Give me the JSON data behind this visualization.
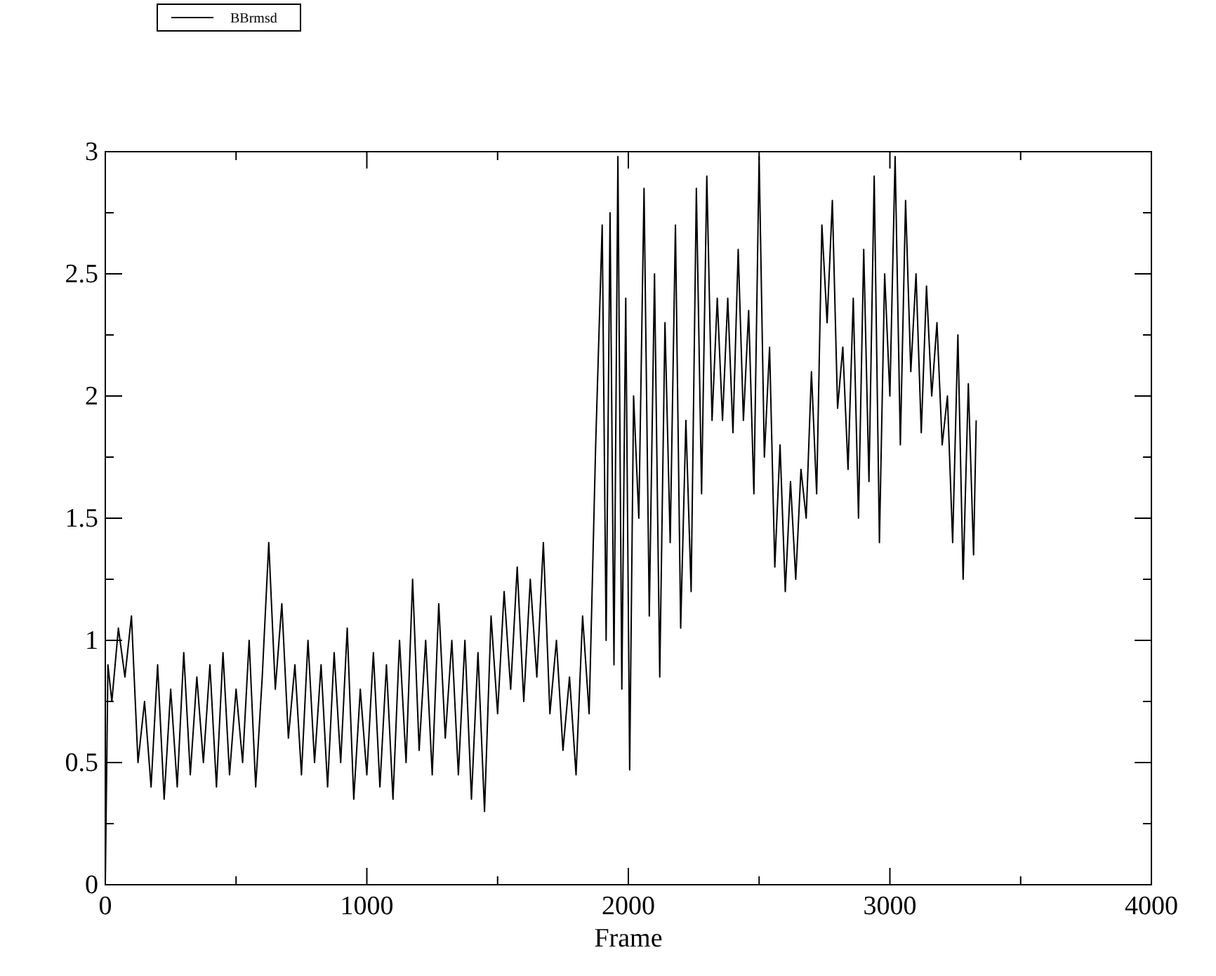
{
  "chart_data": {
    "type": "line",
    "xlabel": "Frame",
    "xlim": [
      0,
      4000
    ],
    "ylim": [
      0,
      3
    ],
    "xticks": [
      0,
      {
        "value": 500,
        "label": null
      },
      1000,
      {
        "value": 1500,
        "label": null
      },
      2000,
      {
        "value": 2500,
        "label": null
      },
      3000,
      {
        "value": 3500,
        "label": null
      },
      4000
    ],
    "yticks": [
      0,
      {
        "value": 0.25,
        "label": null
      },
      0.5,
      {
        "value": 0.75,
        "label": null
      },
      1,
      {
        "value": 1.25,
        "label": null
      },
      1.5,
      {
        "value": 1.75,
        "label": null
      },
      2,
      {
        "value": 2.25,
        "label": null
      },
      2.5,
      {
        "value": 2.75,
        "label": null
      },
      3
    ],
    "legend": "top left",
    "grid": false,
    "series": [
      {
        "name": "BBrmsd",
        "color": "#000000",
        "x": [
          0,
          10,
          25,
          50,
          75,
          100,
          125,
          150,
          175,
          200,
          225,
          250,
          275,
          300,
          325,
          350,
          375,
          400,
          425,
          450,
          475,
          500,
          525,
          550,
          575,
          600,
          625,
          650,
          675,
          700,
          725,
          750,
          775,
          800,
          825,
          850,
          875,
          900,
          925,
          950,
          975,
          1000,
          1025,
          1050,
          1075,
          1100,
          1125,
          1150,
          1175,
          1200,
          1225,
          1250,
          1275,
          1300,
          1325,
          1350,
          1375,
          1400,
          1425,
          1450,
          1475,
          1500,
          1525,
          1550,
          1575,
          1600,
          1625,
          1650,
          1675,
          1700,
          1725,
          1750,
          1775,
          1800,
          1825,
          1850,
          1875,
          1900,
          1915,
          1930,
          1945,
          1960,
          1975,
          1990,
          2005,
          2020,
          2040,
          2060,
          2080,
          2100,
          2120,
          2140,
          2160,
          2180,
          2200,
          2220,
          2240,
          2260,
          2280,
          2300,
          2320,
          2340,
          2360,
          2380,
          2400,
          2420,
          2440,
          2460,
          2480,
          2500,
          2520,
          2540,
          2560,
          2580,
          2600,
          2620,
          2640,
          2660,
          2680,
          2700,
          2720,
          2740,
          2760,
          2780,
          2800,
          2820,
          2840,
          2860,
          2880,
          2900,
          2920,
          2940,
          2960,
          2980,
          3000,
          3020,
          3040,
          3060,
          3080,
          3100,
          3120,
          3140,
          3160,
          3180,
          3200,
          3220,
          3240,
          3260,
          3280,
          3300,
          3320,
          3330
        ],
        "values": [
          0,
          0.9,
          0.75,
          1.05,
          0.85,
          1.1,
          0.5,
          0.75,
          0.4,
          0.9,
          0.35,
          0.8,
          0.4,
          0.95,
          0.45,
          0.85,
          0.5,
          0.9,
          0.4,
          0.95,
          0.45,
          0.8,
          0.5,
          1.0,
          0.4,
          0.85,
          1.4,
          0.8,
          1.15,
          0.6,
          0.9,
          0.45,
          1.0,
          0.5,
          0.9,
          0.4,
          0.95,
          0.5,
          1.05,
          0.35,
          0.8,
          0.45,
          0.95,
          0.4,
          0.9,
          0.35,
          1.0,
          0.5,
          1.25,
          0.55,
          1.0,
          0.45,
          1.15,
          0.6,
          1.0,
          0.45,
          1.0,
          0.35,
          0.95,
          0.3,
          1.1,
          0.7,
          1.2,
          0.8,
          1.3,
          0.75,
          1.25,
          0.85,
          1.4,
          0.7,
          1.0,
          0.55,
          0.85,
          0.45,
          1.1,
          0.7,
          1.8,
          2.7,
          1.0,
          2.75,
          0.9,
          2.98,
          0.8,
          2.4,
          0.47,
          2.0,
          1.5,
          2.85,
          1.1,
          2.5,
          0.85,
          2.3,
          1.4,
          2.7,
          1.05,
          1.9,
          1.2,
          2.85,
          1.6,
          2.9,
          1.9,
          2.4,
          1.9,
          2.4,
          1.85,
          2.6,
          1.9,
          2.35,
          1.6,
          2.98,
          1.75,
          2.2,
          1.3,
          1.8,
          1.2,
          1.65,
          1.25,
          1.7,
          1.5,
          2.1,
          1.6,
          2.7,
          2.3,
          2.8,
          1.95,
          2.2,
          1.7,
          2.4,
          1.5,
          2.6,
          1.65,
          2.9,
          1.4,
          2.5,
          2.0,
          2.98,
          1.8,
          2.8,
          2.1,
          2.5,
          1.85,
          2.45,
          2.0,
          2.3,
          1.8,
          2.0,
          1.4,
          2.25,
          1.25,
          2.05,
          1.35,
          1.9
        ]
      }
    ]
  }
}
